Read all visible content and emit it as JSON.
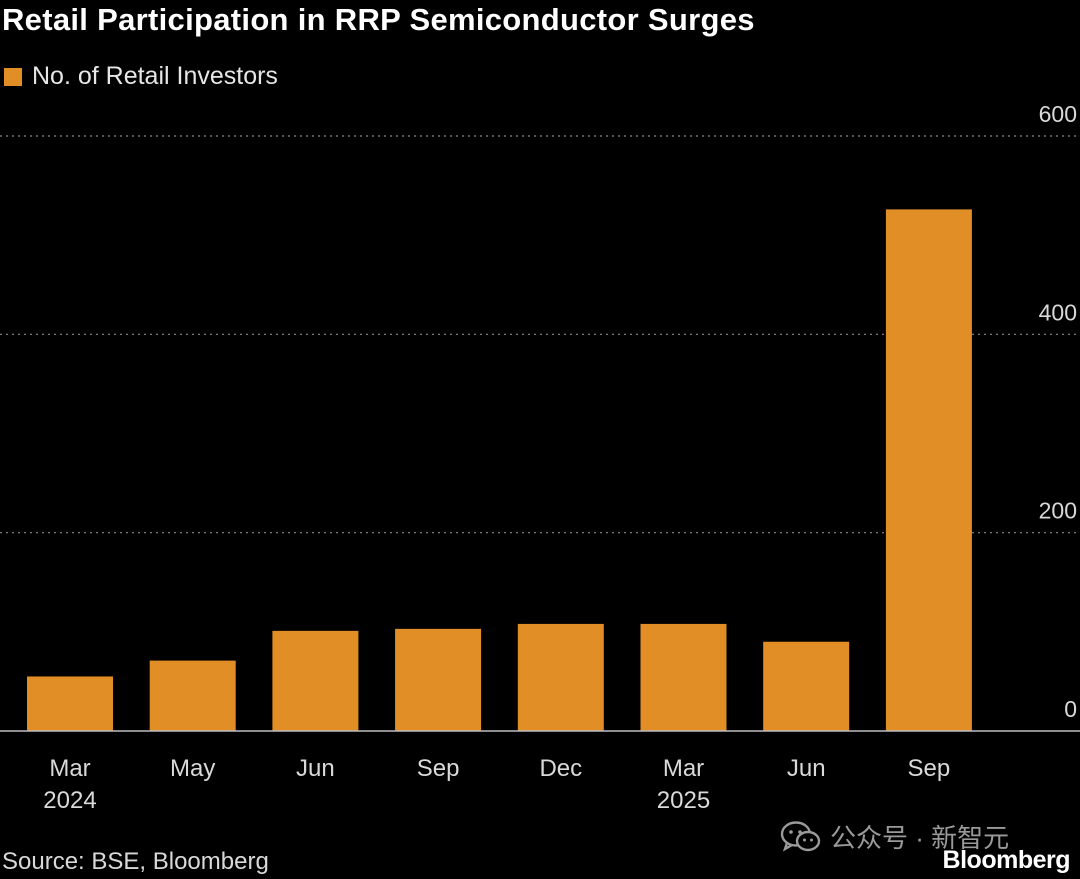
{
  "title": "Retail Participation in RRP Semiconductor Surges",
  "source": "Source: BSE, Bloomberg",
  "brand": "Bloomberg",
  "watermark_text": "公众号 · 新智元",
  "colors": {
    "bar": "#e18e26",
    "grid": "#8a8a8a",
    "axis": "#bdbdbd",
    "background": "#000000"
  },
  "chart_data": {
    "type": "bar",
    "title": "Retail Participation in RRP Semiconductor Surges",
    "categories": [
      "Mar",
      "May",
      "Jun",
      "Sep",
      "Dec",
      "Mar",
      "Jun",
      "Sep"
    ],
    "year_labels": [
      {
        "index": 0,
        "label": "2024"
      },
      {
        "index": 5,
        "label": "2025"
      }
    ],
    "series": [
      {
        "name": "No. of Retail Investors",
        "values": [
          55,
          71,
          101,
          103,
          108,
          108,
          90,
          526
        ]
      }
    ],
    "ylim": [
      0,
      600
    ],
    "yticks": [
      0,
      200,
      400,
      600
    ],
    "y_axis_side": "right",
    "grid": "horizontal dotted",
    "legend_position": "top-left"
  }
}
